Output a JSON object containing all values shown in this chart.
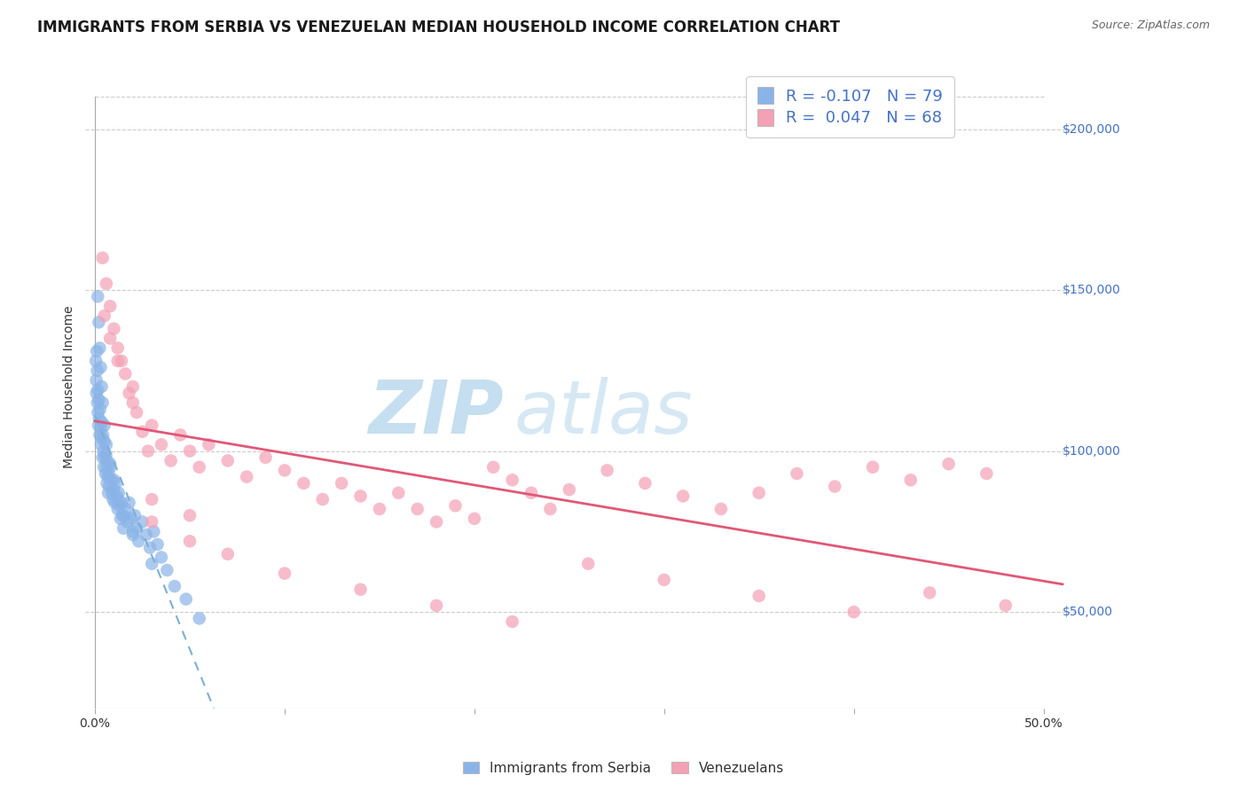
{
  "title": "IMMIGRANTS FROM SERBIA VS VENEZUELAN MEDIAN HOUSEHOLD INCOME CORRELATION CHART",
  "source_text": "Source: ZipAtlas.com",
  "watermark_zip": "ZIP",
  "watermark_atlas": "atlas",
  "ylabel": "Median Household Income",
  "serbia_color": "#8ab4e8",
  "venezuela_color": "#f4a0b5",
  "serbia_trend_color": "#4472c4",
  "venezuela_trend_color": "#e05878",
  "legend_serbia_label": "R = -0.107   N = 79",
  "legend_venezuela_label": "R =  0.047   N = 68",
  "legend_serbia_name": "Immigrants from Serbia",
  "legend_venezuela_name": "Venezuelans",
  "serbia_R": -0.107,
  "serbia_N": 79,
  "venezuela_R": 0.047,
  "venezuela_N": 68,
  "bg_color": "#ffffff",
  "serbia_x": [
    0.05,
    0.07,
    0.08,
    0.1,
    0.12,
    0.13,
    0.15,
    0.16,
    0.18,
    0.2,
    0.22,
    0.25,
    0.27,
    0.3,
    0.32,
    0.35,
    0.37,
    0.4,
    0.42,
    0.45,
    0.47,
    0.5,
    0.52,
    0.55,
    0.58,
    0.6,
    0.63,
    0.65,
    0.68,
    0.7,
    0.73,
    0.75,
    0.8,
    0.85,
    0.9,
    0.95,
    1.0,
    1.05,
    1.1,
    1.15,
    1.2,
    1.25,
    1.3,
    1.35,
    1.4,
    1.45,
    1.5,
    1.6,
    1.7,
    1.8,
    1.9,
    2.0,
    2.1,
    2.2,
    2.3,
    2.5,
    2.7,
    2.9,
    3.1,
    3.3,
    3.5,
    3.8,
    4.2,
    4.8,
    5.5,
    0.15,
    0.2,
    0.25,
    0.3,
    0.35,
    0.4,
    0.5,
    0.6,
    0.8,
    1.0,
    1.2,
    1.5,
    2.0,
    3.0
  ],
  "serbia_y": [
    128000,
    122000,
    118000,
    131000,
    125000,
    115000,
    119000,
    112000,
    108000,
    116000,
    110000,
    105000,
    113000,
    107000,
    102000,
    109000,
    104000,
    98000,
    105000,
    100000,
    95000,
    103000,
    98000,
    93000,
    99000,
    95000,
    90000,
    97000,
    92000,
    87000,
    93000,
    89000,
    95000,
    91000,
    87000,
    85000,
    88000,
    84000,
    90000,
    86000,
    82000,
    87000,
    83000,
    79000,
    84000,
    80000,
    76000,
    82000,
    78000,
    84000,
    79000,
    75000,
    80000,
    76000,
    72000,
    78000,
    74000,
    70000,
    75000,
    71000,
    67000,
    63000,
    58000,
    54000,
    48000,
    148000,
    140000,
    132000,
    126000,
    120000,
    115000,
    108000,
    102000,
    96000,
    91000,
    85000,
    80000,
    74000,
    65000
  ],
  "venezuela_x": [
    0.4,
    0.6,
    0.8,
    1.0,
    1.2,
    1.4,
    1.6,
    1.8,
    2.0,
    2.2,
    2.5,
    2.8,
    3.0,
    3.5,
    4.0,
    4.5,
    5.0,
    5.5,
    6.0,
    7.0,
    8.0,
    9.0,
    10.0,
    11.0,
    12.0,
    13.0,
    14.0,
    15.0,
    16.0,
    17.0,
    18.0,
    19.0,
    20.0,
    21.0,
    22.0,
    23.0,
    24.0,
    25.0,
    27.0,
    29.0,
    31.0,
    33.0,
    35.0,
    37.0,
    39.0,
    41.0,
    43.0,
    45.0,
    47.0,
    0.5,
    0.8,
    1.2,
    2.0,
    3.0,
    5.0,
    7.0,
    10.0,
    14.0,
    18.0,
    22.0,
    26.0,
    30.0,
    35.0,
    40.0,
    44.0,
    48.0,
    3.0,
    5.0
  ],
  "venezuela_y": [
    160000,
    152000,
    145000,
    138000,
    132000,
    128000,
    124000,
    118000,
    115000,
    112000,
    106000,
    100000,
    108000,
    102000,
    97000,
    105000,
    100000,
    95000,
    102000,
    97000,
    92000,
    98000,
    94000,
    90000,
    85000,
    90000,
    86000,
    82000,
    87000,
    82000,
    78000,
    83000,
    79000,
    95000,
    91000,
    87000,
    82000,
    88000,
    94000,
    90000,
    86000,
    82000,
    87000,
    93000,
    89000,
    95000,
    91000,
    96000,
    93000,
    142000,
    135000,
    128000,
    120000,
    78000,
    72000,
    68000,
    62000,
    57000,
    52000,
    47000,
    65000,
    60000,
    55000,
    50000,
    56000,
    52000,
    85000,
    80000
  ]
}
